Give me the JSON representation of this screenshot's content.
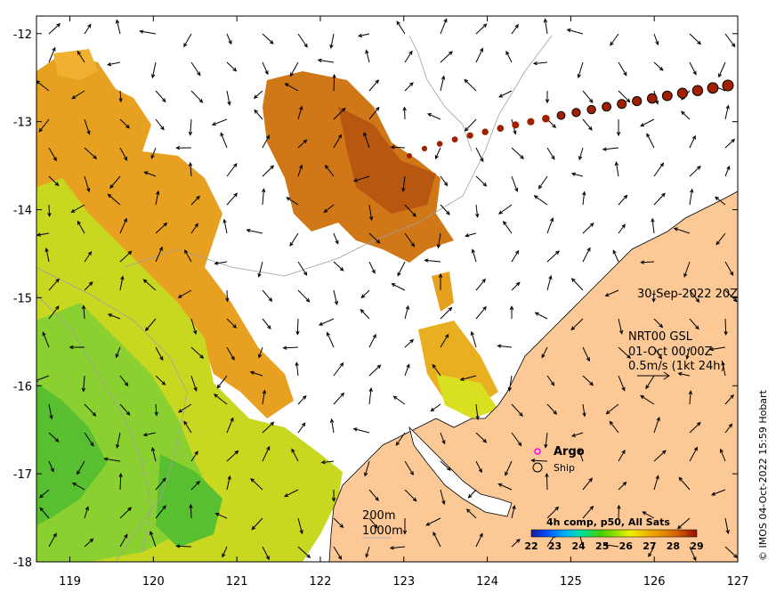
{
  "map": {
    "lon_range": [
      118.6,
      127.0
    ],
    "lat_range": [
      -18.0,
      -11.8
    ],
    "x_ticks": [
      "119",
      "120",
      "121",
      "122",
      "123",
      "124",
      "125",
      "126",
      "127"
    ],
    "y_ticks": [
      "-12",
      "-13",
      "-14",
      "-15",
      "-16",
      "-17",
      "-18"
    ],
    "land_color": "#fcc996",
    "track_color": "#a02000"
  },
  "annotations": {
    "date": "30-Sep-2022 20Z",
    "product": "NRT00 GSL",
    "valid_time": "01-Oct 00:00Z",
    "scale": "0.5m/s (1kt 24h)",
    "credit": "© IMOS 04-Oct-2022 15:59 Hobart"
  },
  "legend": {
    "argo_label": "Argo",
    "ship_label": "Ship",
    "argo_color": "#ff00ff"
  },
  "contours": {
    "label_200": "200m",
    "label_1000": "1000m"
  },
  "colorbar": {
    "title": "4h comp, p50, All Sats",
    "ticks": [
      "22",
      "23",
      "24",
      "25",
      "26",
      "27",
      "28",
      "29"
    ],
    "colors": [
      "#1a1aa0",
      "#0050ff",
      "#00b0ff",
      "#00e0a0",
      "#40d000",
      "#a0e000",
      "#f0f000",
      "#f0c000",
      "#e89000",
      "#d06000",
      "#b03000",
      "#901000"
    ]
  }
}
